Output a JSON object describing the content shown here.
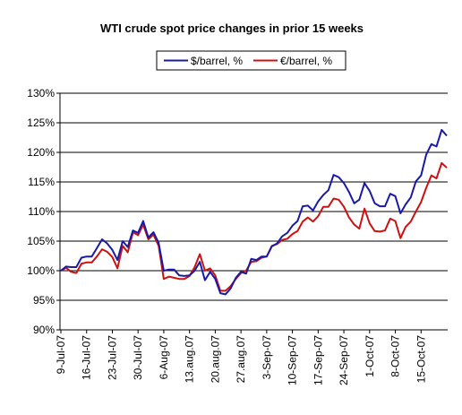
{
  "chart_data": {
    "type": "line",
    "title": "WTI crude spot price changes in prior 15 weeks",
    "xlabel": "",
    "ylabel": "",
    "ylim": [
      90,
      130
    ],
    "y_ticks": [
      "90%",
      "95%",
      "100%",
      "105%",
      "110%",
      "115%",
      "120%",
      "125%",
      "130%"
    ],
    "grid": "horizontal",
    "legend_position": "top",
    "x_tick_labels": [
      "9-Jul-07",
      "16-Jul-07",
      "23-Jul-07",
      "30-Jul-07",
      "6-Aug-07",
      "13.aug.07",
      "20.aug.07",
      "27.aug.07",
      "3-Sep-07",
      "10-Sep-07",
      "17-Sep-07",
      "24-Sep-07",
      "1-Oct-07",
      "8-Oct-07",
      "15-Oct-07"
    ],
    "x_tick_index": [
      0,
      5,
      10,
      15,
      20,
      25,
      30,
      35,
      40,
      45,
      50,
      55,
      60,
      65,
      70
    ],
    "series": [
      {
        "name": "$/barrel, %",
        "color": "#1a1aa6",
        "values": [
          100.0,
          100.7,
          100.6,
          100.6,
          102.2,
          102.4,
          102.4,
          103.8,
          105.3,
          104.6,
          103.5,
          101.8,
          105.0,
          104.0,
          106.8,
          106.4,
          108.4,
          105.6,
          106.5,
          104.7,
          100.0,
          100.2,
          100.2,
          99.2,
          99.1,
          99.2,
          100.0,
          101.5,
          98.4,
          99.8,
          98.6,
          96.2,
          96.0,
          97.0,
          98.8,
          99.8,
          99.5,
          102.0,
          101.8,
          102.4,
          102.4,
          104.1,
          104.6,
          105.8,
          106.4,
          107.6,
          108.4,
          110.9,
          111.0,
          110.2,
          111.7,
          112.8,
          113.6,
          116.2,
          115.8,
          114.8,
          113.3,
          111.4,
          112.0,
          114.8,
          113.5,
          111.4,
          110.9,
          110.9,
          113.0,
          112.6,
          109.7,
          111.2,
          112.4,
          115.1,
          116.1,
          119.6,
          121.4,
          121.0,
          123.8,
          122.8
        ]
      },
      {
        "name": "€/barrel, %",
        "color": "#cc1111",
        "values": [
          100.0,
          100.5,
          99.8,
          99.6,
          101.2,
          101.4,
          101.4,
          102.4,
          103.6,
          103.2,
          102.3,
          100.4,
          104.2,
          103.1,
          106.5,
          106.0,
          107.8,
          105.3,
          106.1,
          104.2,
          98.6,
          99.0,
          98.8,
          98.6,
          98.6,
          99.1,
          100.6,
          102.8,
          100.0,
          100.4,
          99.2,
          96.6,
          96.6,
          97.4,
          98.6,
          99.6,
          100.0,
          101.5,
          101.6,
          102.2,
          102.4,
          104.2,
          104.5,
          105.2,
          105.4,
          106.2,
          106.7,
          108.3,
          109.0,
          108.3,
          109.2,
          110.8,
          110.8,
          112.2,
          112.0,
          110.8,
          109.0,
          107.8,
          107.1,
          110.5,
          108.0,
          106.7,
          106.6,
          106.8,
          108.8,
          108.4,
          105.5,
          107.4,
          108.3,
          110.0,
          111.6,
          114.0,
          116.1,
          115.6,
          118.2,
          117.4
        ]
      }
    ]
  }
}
